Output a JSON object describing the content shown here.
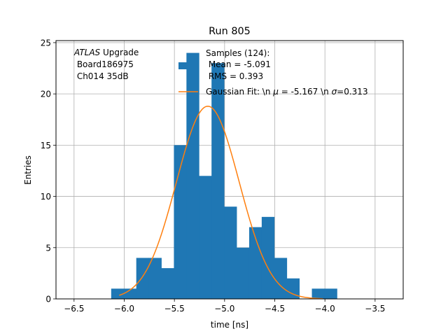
{
  "chart_data": {
    "type": "bar",
    "title": "Run 805",
    "xlabel": "time [ns]",
    "ylabel": "Entries",
    "xlim": [
      -6.68,
      -3.22
    ],
    "ylim": [
      0,
      25.2
    ],
    "grid": true,
    "x_ticks": [
      -6.5,
      -6.0,
      -5.5,
      -5.0,
      -4.5,
      -4.0,
      -3.5
    ],
    "x_tick_labels": [
      "−6.5",
      "−6.0",
      "−5.5",
      "−5.0",
      "−4.5",
      "−4.0",
      "−3.5"
    ],
    "y_ticks": [
      0,
      5,
      10,
      15,
      20,
      25
    ],
    "y_tick_labels": [
      "0",
      "5",
      "10",
      "15",
      "20",
      "25"
    ],
    "bar_color": "#1f77b4",
    "fit_color": "#ff7f0e",
    "histogram": {
      "name": "Samples (124)",
      "bin_edges": [
        -6.13,
        -6.005,
        -5.88,
        -5.755,
        -5.63,
        -5.505,
        -5.38,
        -5.255,
        -5.13,
        -5.005,
        -4.88,
        -4.755,
        -4.63,
        -4.505,
        -4.38,
        -4.255,
        -4.13,
        -4.005,
        -3.88
      ],
      "counts": [
        1,
        1,
        4,
        4,
        3,
        15,
        24,
        12,
        23,
        9,
        5,
        7,
        8,
        4,
        2,
        0,
        1,
        1
      ]
    },
    "gaussian_fit": {
      "mu": -5.167,
      "sigma": 0.313,
      "amplitude": 18.8,
      "x_range": [
        -6.05,
        -4.02
      ]
    },
    "annotation": {
      "line1_italic": "ATLAS",
      "line1_rest": " Upgrade",
      "line2": " Board186975",
      "line3": " Ch014 35dB"
    },
    "legend": {
      "placement": "top-right",
      "hist_label_lines": [
        "Samples (124):",
        " Mean = -5.091",
        " RMS = 0.393"
      ],
      "fit_label_prefix": "Gaussian Fit: \\n ",
      "fit_label_mu_symbol": "μ",
      "fit_label_mid": " = -5.167 \\n ",
      "fit_label_sigma_symbol": "σ",
      "fit_label_suffix": "=0.313"
    }
  }
}
